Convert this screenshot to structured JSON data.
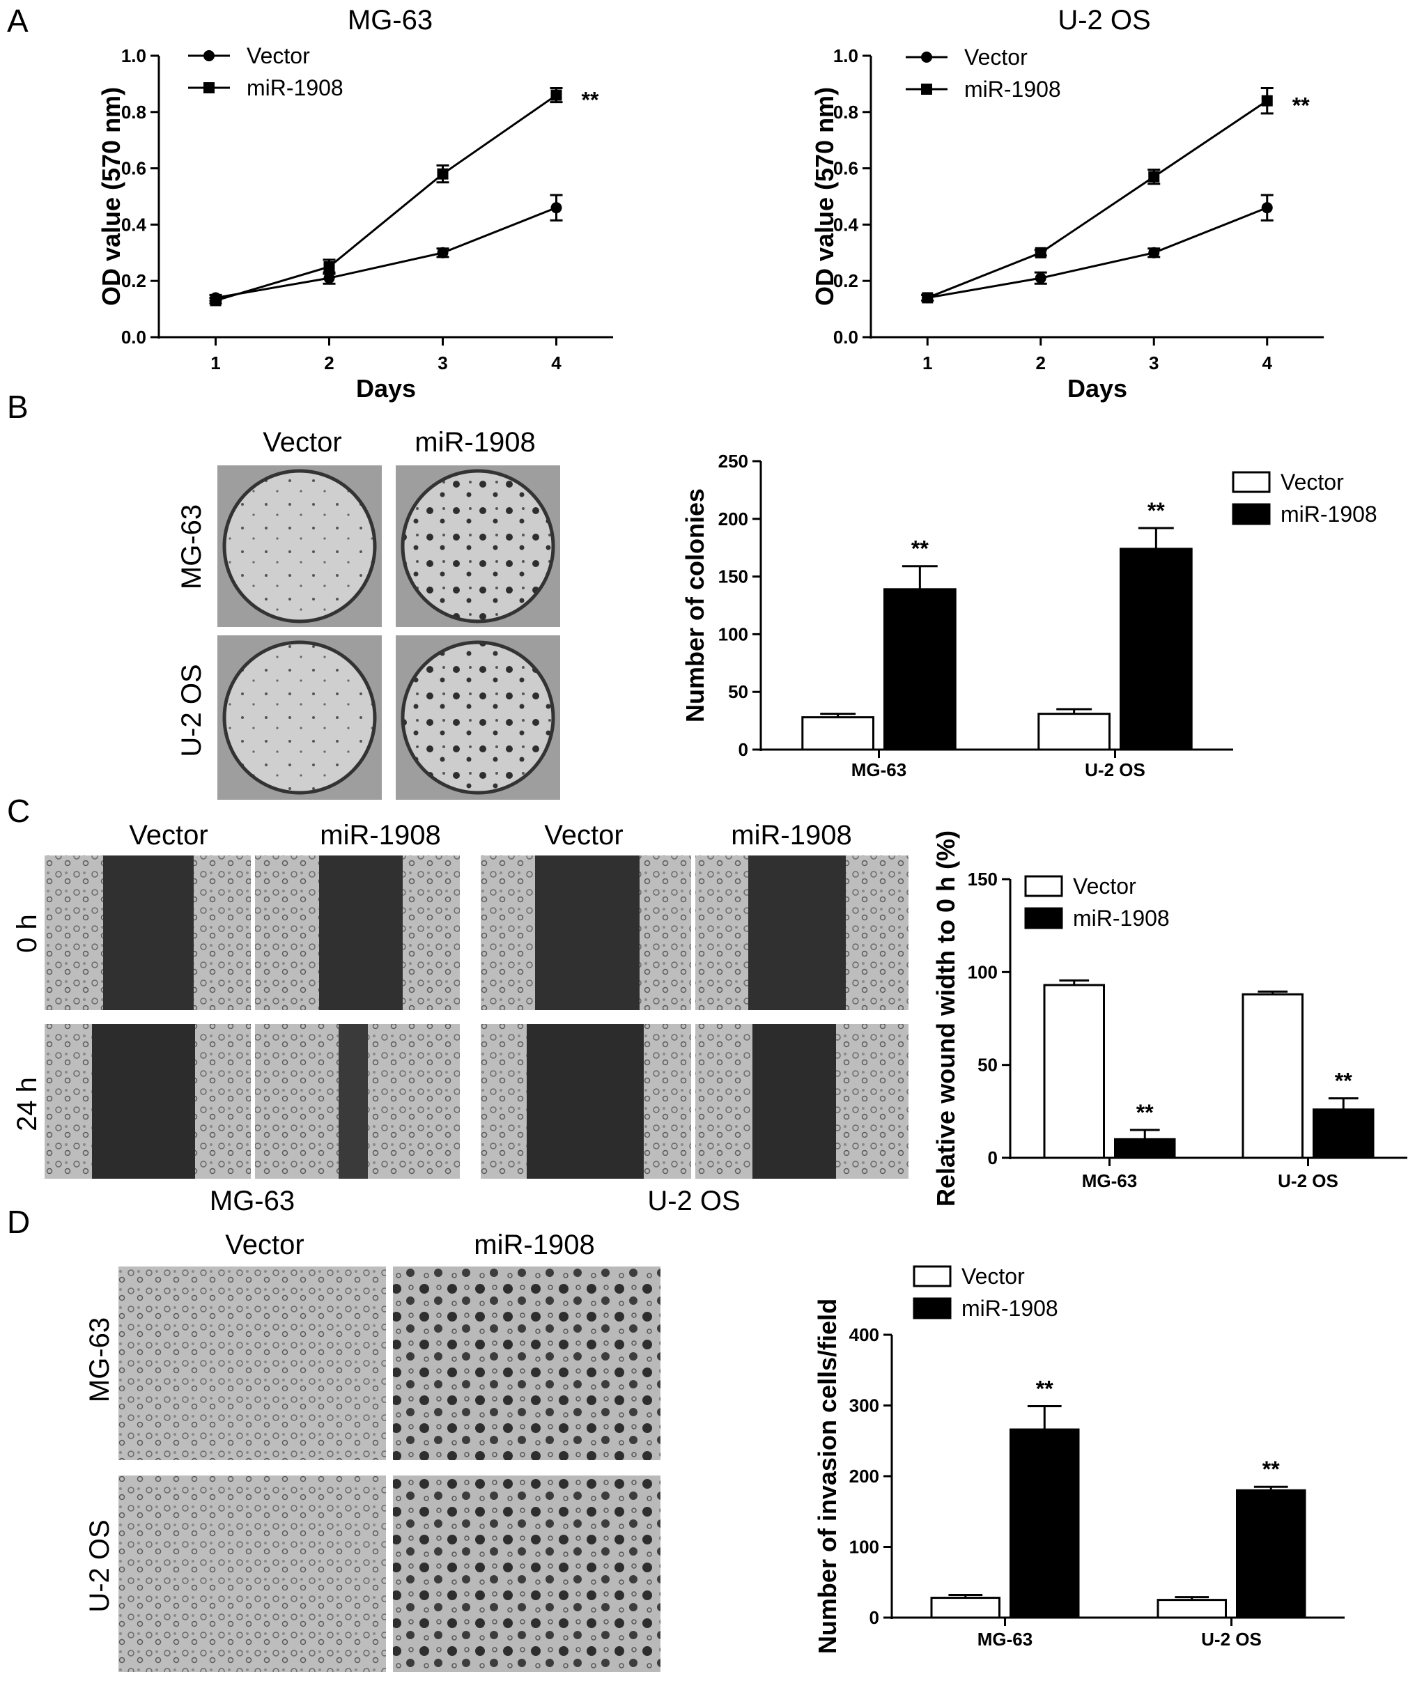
{
  "panel_labels": [
    "A",
    "B",
    "C",
    "D"
  ],
  "colors": {
    "vector_fill": "#ffffff",
    "mir_fill": "#000000",
    "axis": "#000000",
    "photo_bg": "#a8a8a8",
    "photo_dark": "#2a2a2a"
  },
  "panel_b_photos": {
    "columns": [
      "Vector",
      "miR-1908"
    ],
    "rows": [
      "MG-63",
      "U-2 OS"
    ]
  },
  "panel_c_photos": {
    "columns": [
      "Vector",
      "miR-1908",
      "Vector",
      "miR-1908"
    ],
    "rows": [
      "0 h",
      "24 h"
    ],
    "groups": [
      "MG-63",
      "U-2 OS"
    ]
  },
  "panel_d_photos": {
    "columns": [
      "Vector",
      "miR-1908"
    ],
    "rows": [
      "MG-63",
      "U-2 OS"
    ]
  },
  "chart_data": [
    {
      "id": "A-left",
      "type": "line",
      "title": "MG-63",
      "xlabel": "Days",
      "ylabel": "OD value (570 nm)",
      "x": [
        1,
        2,
        3,
        4
      ],
      "xlim": [
        0.5,
        4.5
      ],
      "ylim": [
        0,
        1.0
      ],
      "yticks": [
        "0.0",
        "0.2",
        "0.4",
        "0.6",
        "0.8",
        "1.0"
      ],
      "series": [
        {
          "name": "Vector",
          "marker": "circle",
          "values": [
            0.14,
            0.21,
            0.3,
            0.46
          ],
          "errors": [
            0.01,
            0.02,
            0.015,
            0.045
          ]
        },
        {
          "name": "miR-1908",
          "marker": "square",
          "values": [
            0.13,
            0.25,
            0.58,
            0.86
          ],
          "errors": [
            0.01,
            0.025,
            0.03,
            0.025
          ]
        }
      ],
      "annotation": "**",
      "legend": "top-left",
      "grid": false
    },
    {
      "id": "A-right",
      "type": "line",
      "title": "U-2 OS",
      "xlabel": "Days",
      "ylabel": "OD value (570 nm)",
      "x": [
        1,
        2,
        3,
        4
      ],
      "xlim": [
        0.5,
        4.5
      ],
      "ylim": [
        0,
        1.0
      ],
      "yticks": [
        "0.0",
        "0.2",
        "0.4",
        "0.6",
        "0.8",
        "1.0"
      ],
      "series": [
        {
          "name": "Vector",
          "marker": "circle",
          "values": [
            0.14,
            0.21,
            0.3,
            0.46
          ],
          "errors": [
            0.01,
            0.02,
            0.015,
            0.045
          ]
        },
        {
          "name": "miR-1908",
          "marker": "square",
          "values": [
            0.14,
            0.3,
            0.57,
            0.84
          ],
          "errors": [
            0.01,
            0.01,
            0.025,
            0.045
          ]
        }
      ],
      "annotation": "**",
      "legend": "top-left",
      "grid": false
    },
    {
      "id": "B",
      "type": "bar",
      "ylabel": "Number of colonies",
      "categories": [
        "MG-63",
        "U-2 OS"
      ],
      "ylim": [
        0,
        250
      ],
      "yticks": [
        "0",
        "50",
        "100",
        "150",
        "200",
        "250"
      ],
      "series": [
        {
          "name": "Vector",
          "values": [
            28,
            31
          ],
          "errors": [
            3,
            4
          ]
        },
        {
          "name": "miR-1908",
          "values": [
            139,
            174
          ],
          "errors": [
            20,
            18
          ],
          "annotations": [
            "**",
            "**"
          ]
        }
      ],
      "legend": "top-right",
      "grid": false
    },
    {
      "id": "C",
      "type": "bar",
      "ylabel": "Relative wound width to 0 h (%)",
      "categories": [
        "MG-63",
        "U-2 OS"
      ],
      "ylim": [
        0,
        150
      ],
      "yticks": [
        "0",
        "50",
        "100",
        "150"
      ],
      "series": [
        {
          "name": "Vector",
          "values": [
            93,
            88
          ],
          "errors": [
            2.5,
            1.5
          ]
        },
        {
          "name": "miR-1908",
          "values": [
            10,
            26
          ],
          "errors": [
            5,
            6
          ],
          "annotations": [
            "**",
            "**"
          ]
        }
      ],
      "legend": "top-left",
      "grid": false
    },
    {
      "id": "D",
      "type": "bar",
      "ylabel": "Number of invasion cells/field",
      "categories": [
        "MG-63",
        "U-2 OS"
      ],
      "ylim": [
        0,
        400
      ],
      "yticks": [
        "0",
        "100",
        "200",
        "300",
        "400"
      ],
      "series": [
        {
          "name": "Vector",
          "values": [
            28,
            25
          ],
          "errors": [
            4,
            4
          ]
        },
        {
          "name": "miR-1908",
          "values": [
            266,
            180
          ],
          "errors": [
            33,
            5
          ],
          "annotations": [
            "**",
            "**"
          ]
        }
      ],
      "legend": "top-left",
      "grid": false
    }
  ]
}
